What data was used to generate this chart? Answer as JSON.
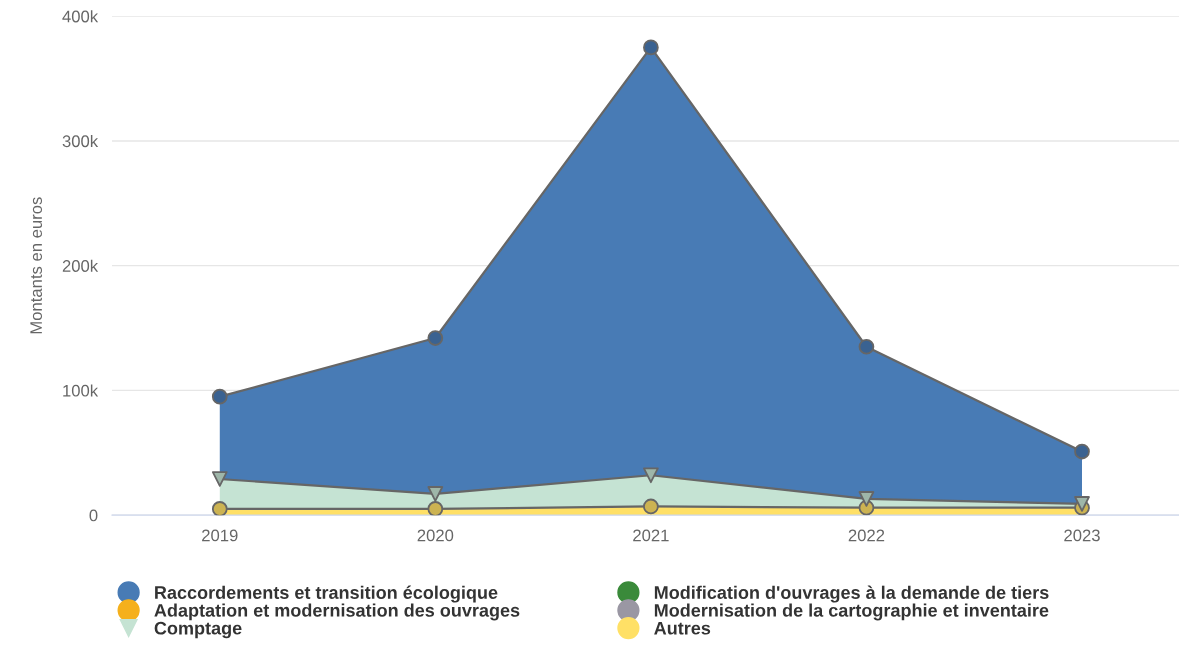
{
  "chart_data": {
    "type": "area",
    "stacked": true,
    "ylabel": "Montants en euros",
    "categories": [
      "2019",
      "2020",
      "2021",
      "2022",
      "2023"
    ],
    "series": [
      {
        "name": "Autres",
        "color": "#ffe066",
        "marker": "circle",
        "values": [
          5000,
          5000,
          7000,
          6000,
          6000
        ]
      },
      {
        "name": "Comptage",
        "color": "#c5e3d3",
        "marker": "triangle",
        "values": [
          24000,
          12000,
          25000,
          7000,
          3000
        ]
      },
      {
        "name": "Modernisation de la cartographie et inventaire",
        "color": "#9a97a3",
        "values": [
          null,
          null,
          null,
          null,
          null
        ]
      },
      {
        "name": "Adaptation et modernisation des ouvrages",
        "color": "#f5b01c",
        "values": [
          null,
          null,
          null,
          null,
          null
        ]
      },
      {
        "name": "Modification d'ouvrages à la demande de tiers",
        "color": "#3a8a3a",
        "values": [
          null,
          null,
          null,
          null,
          null
        ]
      },
      {
        "name": "Raccordements et transition écologique",
        "color": "#487bb5",
        "marker": "circle",
        "values": [
          66000,
          125000,
          343000,
          122000,
          42000
        ]
      }
    ],
    "ylim": [
      0,
      400000
    ],
    "yticks": [
      {
        "value": 0,
        "label": "0"
      },
      {
        "value": 100000,
        "label": "100k"
      },
      {
        "value": 200000,
        "label": "200k"
      },
      {
        "value": 300000,
        "label": "300k"
      },
      {
        "value": 400000,
        "label": "400k"
      }
    ],
    "grid": "y",
    "legend": "bottom"
  }
}
